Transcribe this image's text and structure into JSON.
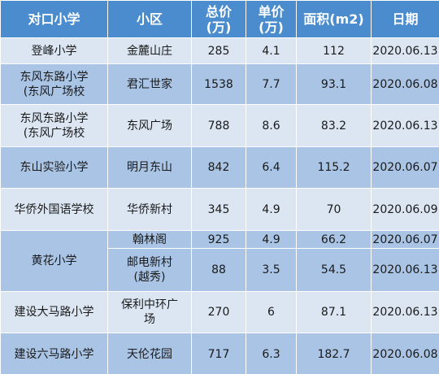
{
  "columns": [
    "对口小学",
    "小区",
    "总价\n(万)",
    "单价\n(万)",
    "面积(m2)",
    "日期"
  ],
  "rows": [
    {
      "school": "登峰小学",
      "community": "金麓山庄",
      "total": "285",
      "unit": "4.1",
      "area": "112",
      "date": "2020.06.13"
    },
    {
      "school": "东风东路小学\n(东风广场校",
      "community": "君汇世家",
      "total": "1538",
      "unit": "7.7",
      "area": "93.1",
      "date": "2020.06.08"
    },
    {
      "school": "东风东路小学\n(东风广场校",
      "community": "东风广场",
      "total": "788",
      "unit": "8.6",
      "area": "83.2",
      "date": "2020.06.13"
    },
    {
      "school": "东山实验小学",
      "community": "明月东山",
      "total": "842",
      "unit": "6.4",
      "area": "115.2",
      "date": "2020.06.07"
    },
    {
      "school": "华侨外国语学校",
      "community": "华侨新村",
      "total": "345",
      "unit": "4.9",
      "area": "70",
      "date": "2020.06.09"
    },
    {
      "school": "黄花小学",
      "community": "翰林阁",
      "total": "925",
      "unit": "4.9",
      "area": "66.2",
      "date": "2020.06.07"
    },
    {
      "school": "",
      "community": "邮电新村\n(越秀)",
      "total": "88",
      "unit": "3.5",
      "area": "54.5",
      "date": "2020.06.13"
    },
    {
      "school": "建设大马路小学",
      "community": "保利中环广\n场",
      "total": "270",
      "unit": "6",
      "area": "87.1",
      "date": "2020.06.13"
    },
    {
      "school": "建设六马路小学",
      "community": "天伦花园",
      "total": "717",
      "unit": "6.3",
      "area": "182.7",
      "date": "2020.06.08"
    }
  ],
  "colors": {
    "header": "#4a8ccd",
    "row_light": "#dbe6f2",
    "row_dark": "#a9c4e5"
  }
}
